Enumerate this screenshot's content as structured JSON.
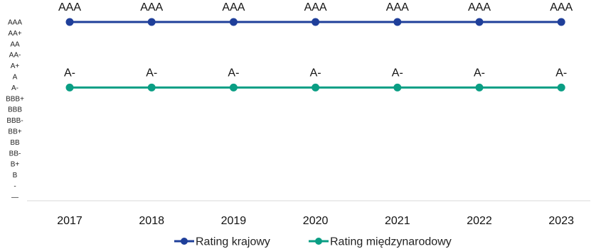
{
  "chart_data": {
    "type": "line",
    "title": "",
    "xlabel": "",
    "ylabel": "",
    "categories": [
      "2017",
      "2018",
      "2019",
      "2020",
      "2021",
      "2022",
      "2023"
    ],
    "y_tick_labels": [
      "AAA",
      "AA+",
      "AA",
      "AA-",
      "A+",
      "A",
      "A-",
      "BBB+",
      "BBB",
      "BBB-",
      "BB+",
      "BB",
      "BB-",
      "B+",
      "B",
      "-",
      "—"
    ],
    "series": [
      {
        "name": "Rating krajowy",
        "color": "#1f3f9a",
        "values": [
          "AAA",
          "AAA",
          "AAA",
          "AAA",
          "AAA",
          "AAA",
          "AAA"
        ],
        "labels": [
          "AAA",
          "AAA",
          "AAA",
          "AAA",
          "AAA",
          "AAA",
          "AAA"
        ]
      },
      {
        "name": "Rating międzynarodowy",
        "color": "#0a9e84",
        "values": [
          "A-",
          "A-",
          "A-",
          "A-",
          "A-",
          "A-",
          "A-"
        ],
        "labels": [
          "A-",
          "A-",
          "A-",
          "A-",
          "A-",
          "A-",
          "A-"
        ]
      }
    ],
    "grid": false,
    "legend_position": "bottom"
  }
}
